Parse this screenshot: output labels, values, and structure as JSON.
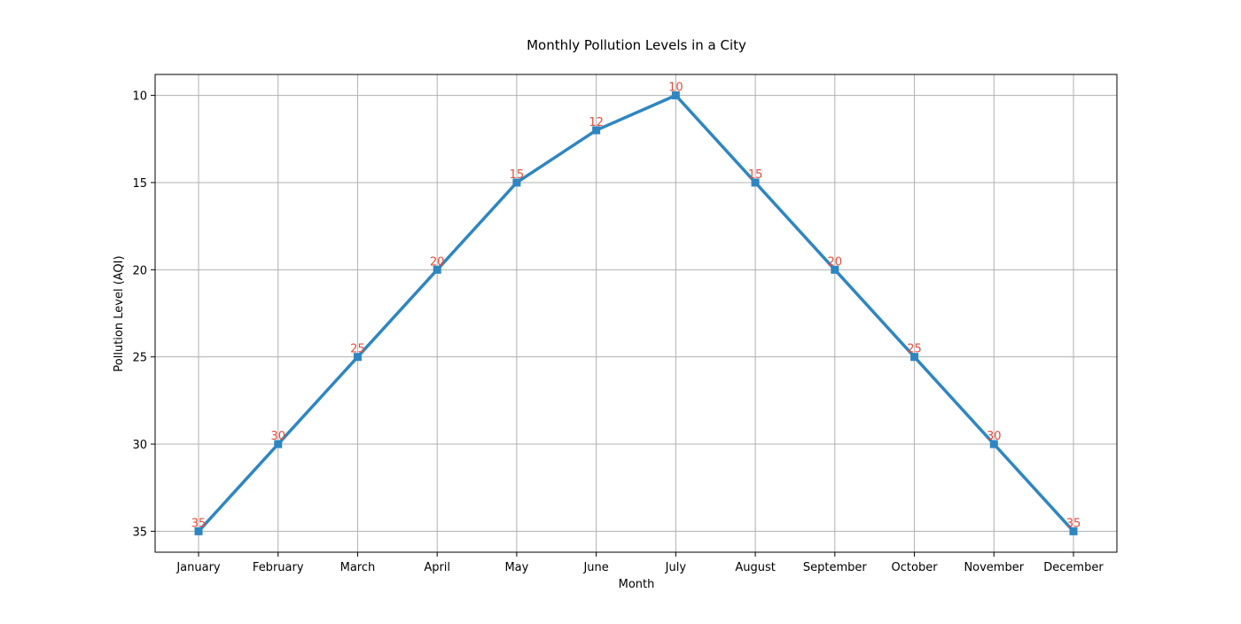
{
  "colors": {
    "line": "#2e86c1",
    "marker": "#2e86c1",
    "data_label": "#e74c3c",
    "grid": "#b0b0b0",
    "frame": "#000000"
  },
  "chart_data": {
    "type": "line",
    "title": "Monthly Pollution Levels in a City",
    "xlabel": "Month",
    "ylabel": "Pollution Level (AQI)",
    "categories": [
      "January",
      "February",
      "March",
      "April",
      "May",
      "June",
      "July",
      "August",
      "September",
      "October",
      "November",
      "December"
    ],
    "series": [
      {
        "values": [
          35,
          30,
          25,
          20,
          15,
          12,
          10,
          15,
          20,
          25,
          30,
          35
        ],
        "marker": "square",
        "show_data_labels": true
      }
    ],
    "ylim": [
      36.2,
      8.8
    ],
    "y_inverted": true,
    "y_ticks": [
      10,
      15,
      20,
      25,
      30,
      35
    ],
    "grid": true,
    "legend": "none"
  }
}
